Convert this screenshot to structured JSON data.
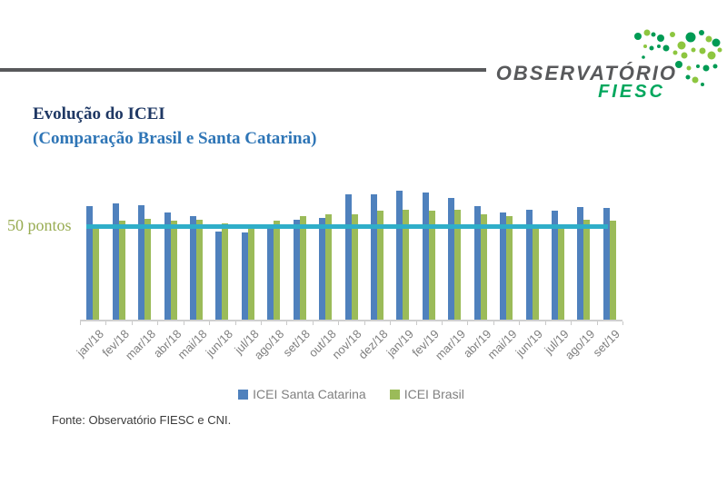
{
  "page": {
    "background": "#FFFFFF"
  },
  "header": {
    "logo": {
      "line1": "OBSERVATÓRIO",
      "line2": "FIESC",
      "text_color": "#58595B",
      "accent_color": "#00A75D",
      "map_dot_colors": {
        "dark": "#009B54",
        "light": "#8DC63F"
      }
    }
  },
  "title": {
    "line1": "Evolução do ICEI",
    "line2": "(Comparação Brasil e Santa Catarina)",
    "line1_color": "#1F3864",
    "line2_color": "#2E75B6"
  },
  "chart_data": {
    "type": "bar",
    "categories": [
      "jan/18",
      "fev/18",
      "mar/18",
      "abr/18",
      "mai/18",
      "jun/18",
      "jul/18",
      "ago/18",
      "set/18",
      "out/18",
      "nov/18",
      "dez/18",
      "jan/19",
      "fev/19",
      "mar/19",
      "abr/19",
      "mai/19",
      "jun/19",
      "jul/19",
      "ago/19",
      "set/19"
    ],
    "series": [
      {
        "name": "ICEI Santa Catarina",
        "color": "#4F81BD",
        "values": [
          61,
          62.5,
          61.5,
          57.5,
          55.5,
          47.5,
          47,
          51,
          53.5,
          54.5,
          67,
          67,
          69,
          68,
          65.5,
          61,
          57.5,
          59,
          58.5,
          60.5,
          60
        ]
      },
      {
        "name": "ICEI Brasil",
        "color": "#9BBB59",
        "values": [
          50,
          53,
          54,
          53,
          53.5,
          52,
          50,
          53,
          55.5,
          56.5,
          56.5,
          58.5,
          59,
          58.5,
          59,
          56.5,
          55.5,
          51.5,
          51,
          53.5,
          53
        ]
      }
    ],
    "reference_line": {
      "label": "50 pontos",
      "value": 50,
      "color": "#2FAEC9",
      "label_color": "#98AC52"
    },
    "ylim": [
      0,
      74
    ],
    "grid": false,
    "legend_position": "bottom",
    "legend_text_color": "#808080",
    "axis_color": "#CFCFCF",
    "tick_label_color": "#7F7F7F"
  },
  "footer": {
    "source": "Fonte: Observatório FIESC e CNI."
  }
}
